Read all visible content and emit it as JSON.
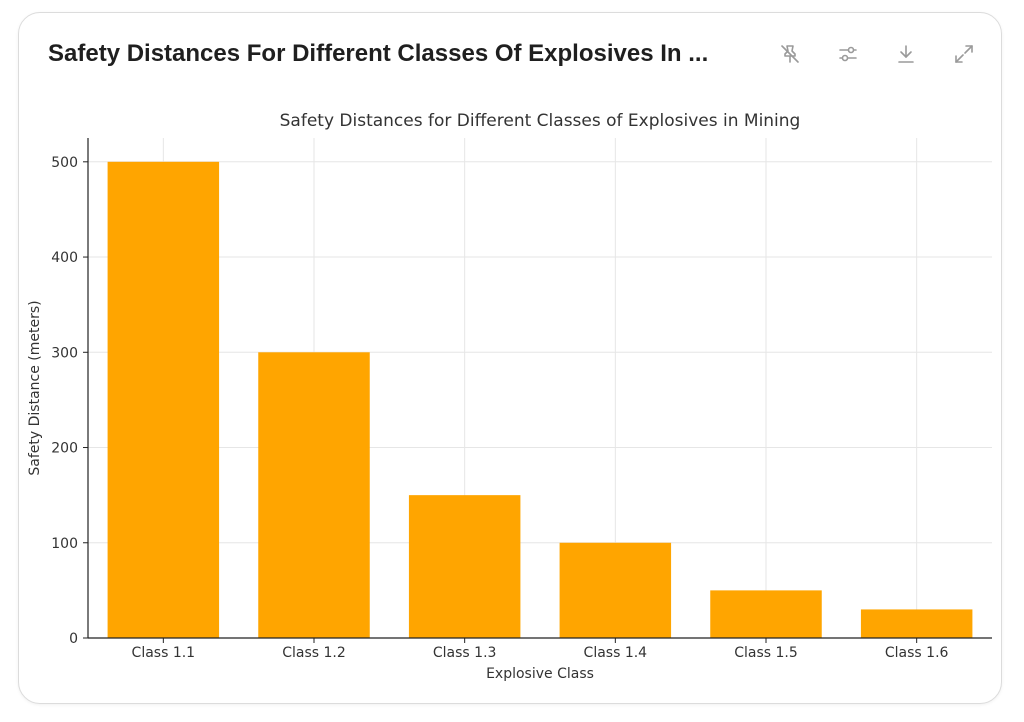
{
  "card": {
    "title": "Safety Distances For Different Classes Of Explosives In ..."
  },
  "toolbar": {
    "icons": [
      "pin-off-icon",
      "sliders-icon",
      "download-icon",
      "expand-icon"
    ]
  },
  "colors": {
    "bar": "#FFA500",
    "grid": "#e6e6e6",
    "axis": "#222222",
    "text": "#333333"
  },
  "chart_data": {
    "type": "bar",
    "title": "Safety Distances for Different Classes of Explosives in Mining",
    "xlabel": "Explosive Class",
    "ylabel": "Safety Distance (meters)",
    "categories": [
      "Class 1.1",
      "Class 1.2",
      "Class 1.3",
      "Class 1.4",
      "Class 1.5",
      "Class 1.6"
    ],
    "values": [
      500,
      300,
      150,
      100,
      50,
      30
    ],
    "ylim": [
      0,
      525
    ],
    "yticks": [
      0,
      100,
      200,
      300,
      400,
      500
    ],
    "grid": true
  }
}
